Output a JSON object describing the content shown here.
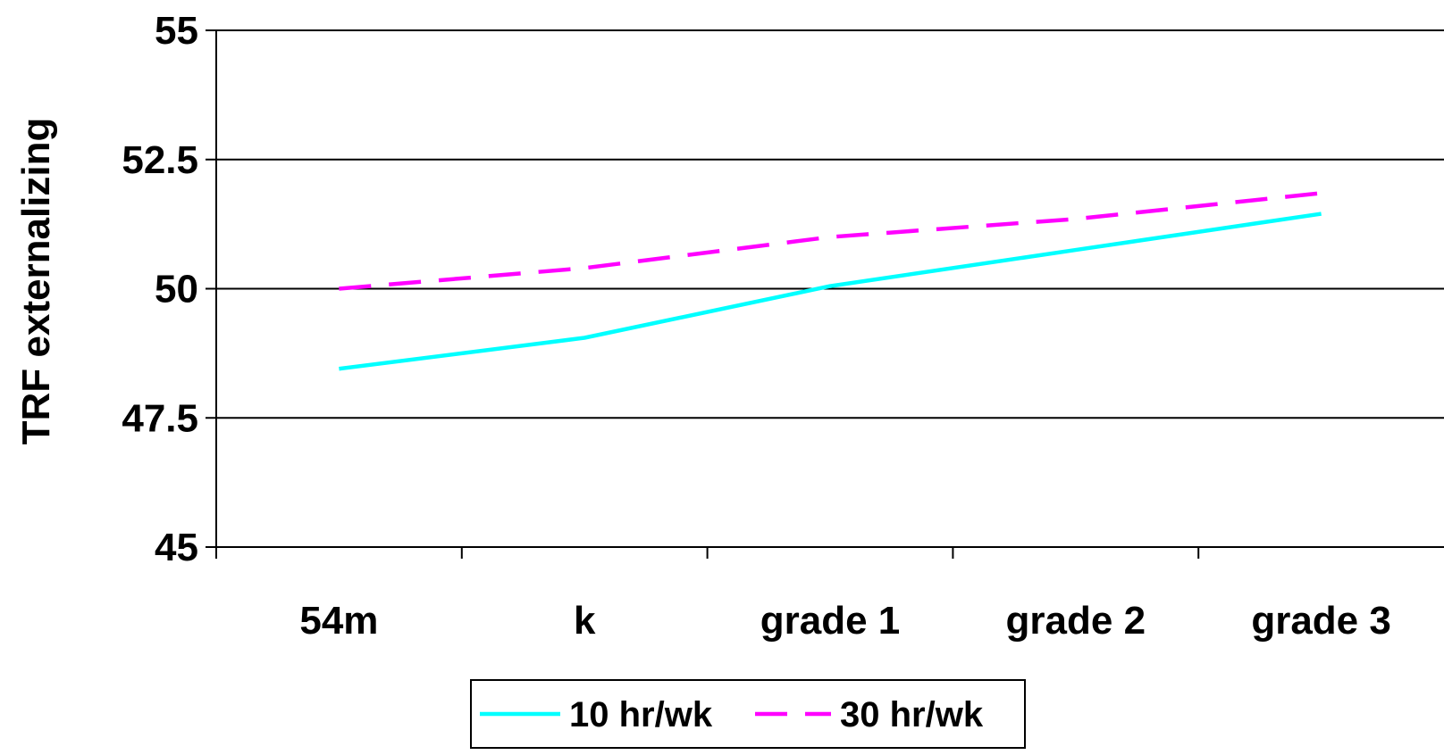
{
  "chart_data": {
    "type": "line",
    "title": "",
    "xlabel": "",
    "ylabel": "TRF externalizing",
    "categories": [
      "54m",
      "k",
      "grade 1",
      "grade 2",
      "grade 3"
    ],
    "ylim": [
      45,
      55
    ],
    "yticks": [
      "45",
      "47.5",
      "50",
      "52.5",
      "55"
    ],
    "grid": true,
    "legend_position": "bottom",
    "series": [
      {
        "name": "10 hr/wk",
        "values": [
          48.45,
          49.05,
          50.05,
          50.75,
          51.45
        ],
        "color": "#00FFFF",
        "dash": "solid"
      },
      {
        "name": "30 hr/wk",
        "values": [
          50.0,
          50.4,
          51.0,
          51.35,
          51.85
        ],
        "color": "#FF00FF",
        "dash": "dashed"
      }
    ]
  }
}
